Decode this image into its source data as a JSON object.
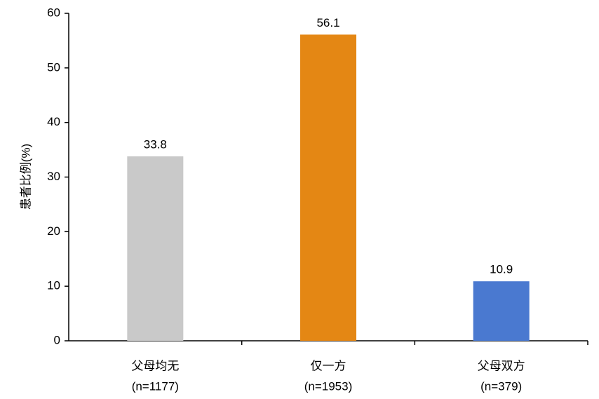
{
  "chart_data": {
    "type": "bar",
    "y_label": "患者比例(%)",
    "categories": [
      [
        "父母均无",
        "(n=1177)"
      ],
      [
        "仅一方",
        "(n=1953)"
      ],
      [
        "父母双方",
        "(n=379)"
      ]
    ],
    "values": [
      33.8,
      56.1,
      10.9
    ],
    "colors": [
      "#c9c9c9",
      "#e48714",
      "#4a79d0"
    ],
    "ylim": [
      0,
      60
    ],
    "yticks": [
      0,
      10,
      20,
      30,
      40,
      50,
      60
    ],
    "grid": false
  }
}
